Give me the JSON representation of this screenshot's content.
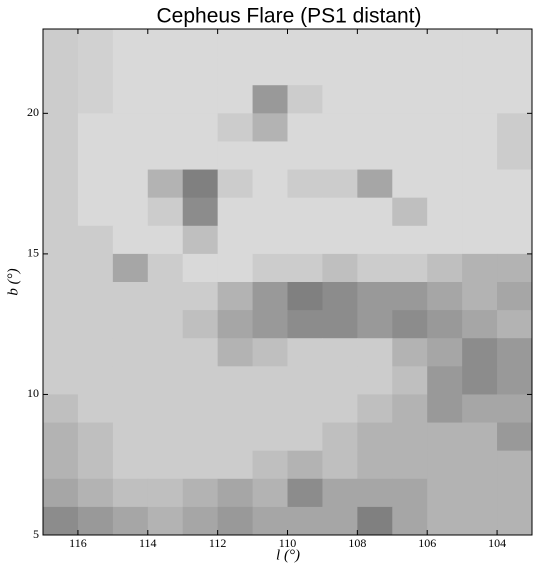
{
  "chart_data": {
    "type": "heatmap",
    "title": "Cepheus Flare (PS1 distant)",
    "xlabel": "l (°)",
    "ylabel": "b (°)",
    "xlim": [
      117,
      103
    ],
    "ylim": [
      5,
      23
    ],
    "xticks": [
      116,
      114,
      112,
      110,
      108,
      106,
      104
    ],
    "yticks": [
      5,
      10,
      15,
      20
    ],
    "colormap": "gray_r",
    "z": [
      [
        0.2,
        0.18,
        0.15,
        0.15,
        0.15,
        0.15,
        0.15,
        0.15,
        0.15,
        0.15,
        0.15,
        0.15,
        0.15,
        0.15
      ],
      [
        0.2,
        0.18,
        0.15,
        0.15,
        0.15,
        0.15,
        0.15,
        0.15,
        0.15,
        0.15,
        0.15,
        0.15,
        0.15,
        0.15
      ],
      [
        0.2,
        0.18,
        0.15,
        0.15,
        0.15,
        0.15,
        0.4,
        0.2,
        0.15,
        0.15,
        0.15,
        0.15,
        0.15,
        0.15
      ],
      [
        0.2,
        0.15,
        0.15,
        0.15,
        0.15,
        0.2,
        0.3,
        0.15,
        0.15,
        0.15,
        0.15,
        0.15,
        0.15,
        0.2
      ],
      [
        0.2,
        0.15,
        0.15,
        0.15,
        0.15,
        0.15,
        0.15,
        0.15,
        0.15,
        0.15,
        0.15,
        0.15,
        0.15,
        0.2
      ],
      [
        0.2,
        0.15,
        0.15,
        0.3,
        0.5,
        0.2,
        0.15,
        0.2,
        0.2,
        0.35,
        0.15,
        0.15,
        0.15,
        0.15
      ],
      [
        0.2,
        0.15,
        0.15,
        0.2,
        0.45,
        0.15,
        0.15,
        0.15,
        0.15,
        0.15,
        0.25,
        0.15,
        0.15,
        0.15
      ],
      [
        0.2,
        0.2,
        0.15,
        0.15,
        0.25,
        0.15,
        0.15,
        0.15,
        0.15,
        0.15,
        0.15,
        0.15,
        0.15,
        0.15
      ],
      [
        0.2,
        0.2,
        0.35,
        0.2,
        0.15,
        0.15,
        0.2,
        0.2,
        0.25,
        0.2,
        0.2,
        0.25,
        0.3,
        0.3
      ],
      [
        0.2,
        0.2,
        0.2,
        0.2,
        0.2,
        0.3,
        0.4,
        0.5,
        0.45,
        0.4,
        0.4,
        0.35,
        0.3,
        0.35
      ],
      [
        0.2,
        0.2,
        0.2,
        0.2,
        0.25,
        0.35,
        0.4,
        0.45,
        0.45,
        0.4,
        0.45,
        0.4,
        0.35,
        0.3
      ],
      [
        0.2,
        0.2,
        0.2,
        0.2,
        0.2,
        0.3,
        0.25,
        0.2,
        0.2,
        0.2,
        0.3,
        0.35,
        0.45,
        0.4
      ],
      [
        0.2,
        0.2,
        0.2,
        0.2,
        0.2,
        0.2,
        0.2,
        0.2,
        0.2,
        0.2,
        0.25,
        0.4,
        0.45,
        0.4
      ],
      [
        0.25,
        0.2,
        0.2,
        0.2,
        0.2,
        0.2,
        0.2,
        0.2,
        0.2,
        0.25,
        0.3,
        0.4,
        0.35,
        0.35
      ],
      [
        0.3,
        0.25,
        0.2,
        0.2,
        0.2,
        0.2,
        0.2,
        0.2,
        0.25,
        0.3,
        0.3,
        0.3,
        0.3,
        0.4
      ],
      [
        0.3,
        0.25,
        0.2,
        0.2,
        0.2,
        0.2,
        0.25,
        0.3,
        0.25,
        0.3,
        0.3,
        0.3,
        0.3,
        0.3
      ],
      [
        0.35,
        0.3,
        0.25,
        0.25,
        0.3,
        0.35,
        0.3,
        0.45,
        0.35,
        0.35,
        0.35,
        0.3,
        0.3,
        0.3
      ],
      [
        0.45,
        0.4,
        0.35,
        0.3,
        0.35,
        0.4,
        0.35,
        0.35,
        0.35,
        0.5,
        0.35,
        0.3,
        0.3,
        0.3
      ]
    ]
  }
}
